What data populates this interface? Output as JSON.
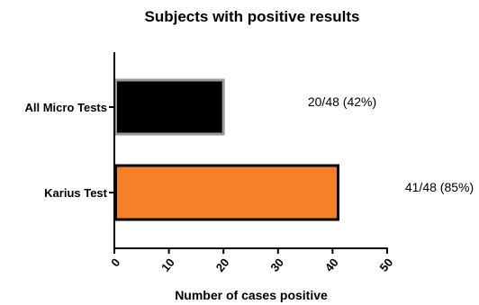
{
  "chart_data": {
    "type": "bar",
    "orientation": "horizontal",
    "title": "Subjects with positive results",
    "xlabel": "Number of cases positive",
    "ylabel": "",
    "xlim": [
      0,
      50
    ],
    "x_ticks": [
      0,
      10,
      20,
      30,
      40,
      50
    ],
    "categories": [
      "All Micro Tests",
      "Karius Test"
    ],
    "values": [
      20,
      41
    ],
    "bar_colors": [
      "#000000",
      "#f5802a"
    ],
    "bar_edge_colors": [
      "#9a9a9a",
      "#000000"
    ],
    "data_labels": [
      "20/48 (42%)",
      "41/48 (85%)"
    ],
    "grid": false,
    "legend": "none"
  }
}
